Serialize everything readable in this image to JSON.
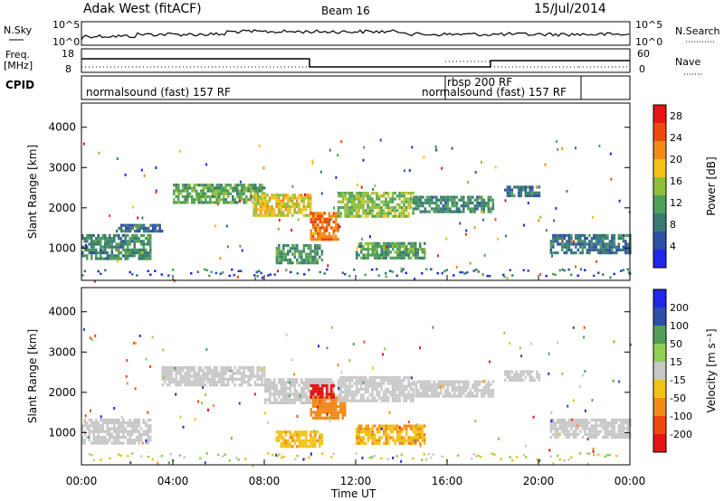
{
  "header": {
    "station": "Adak West (fitACF)",
    "beam": "Beam 16",
    "date": "15/Jul/2014"
  },
  "top_panels": {
    "nsky_label": "N.Sky",
    "nsearch_label": "N.Search",
    "nsky_ticks": [
      "10^5",
      "10^0"
    ],
    "freq_label_1": "Freq.",
    "freq_label_2": "[MHz]",
    "freq_ticks": [
      "18",
      "8"
    ],
    "nave_label": "Nave",
    "nave_ticks": [
      "60",
      "0"
    ],
    "cpid_label": "CPID",
    "cpid_segments": [
      "normalsound (fast) 157 RF",
      "rbsp 200 RF",
      "normalsound (fast) 157 RF"
    ]
  },
  "colors": {
    "power_scale": [
      "#1e28e6",
      "#2e4fa8",
      "#3a7a74",
      "#4f9f5a",
      "#8fbf3a",
      "#f2c21a",
      "#f28a1a",
      "#ee4a10",
      "#e61414"
    ],
    "velocity_scale": [
      "#e61414",
      "#ee4a10",
      "#f28a1a",
      "#f2c21a",
      "#c8c8c8",
      "#8fd050",
      "#4f9f5a",
      "#2e4fa8",
      "#1e28e6"
    ]
  },
  "chart_data": [
    {
      "type": "heatmap",
      "quantity": "power",
      "xlabel": "Time UT",
      "ylabel": "Slant Range [km]",
      "x_ticks": [
        "00:00",
        "04:00",
        "08:00",
        "12:00",
        "16:00",
        "20:00",
        "00:00"
      ],
      "y_ticks": [
        "1000",
        "2000",
        "3000",
        "4000"
      ],
      "ylim": [
        200,
        4600
      ],
      "xlim_hours": [
        0,
        24
      ],
      "colorbar_label": "Power [dB]",
      "colorbar_ticks": [
        "4",
        "8",
        "12",
        "16",
        "20",
        "24",
        "28"
      ],
      "colorbar_range": [
        0,
        30
      ],
      "bands": [
        {
          "t0": 0.0,
          "t1": 3.0,
          "r0": 750,
          "r1": 1350,
          "level": 9
        },
        {
          "t0": 1.5,
          "t1": 3.5,
          "r0": 1450,
          "r1": 1600,
          "level": 7
        },
        {
          "t0": 4.0,
          "t1": 8.0,
          "r0": 2150,
          "r1": 2600,
          "level": 12
        },
        {
          "t0": 7.5,
          "t1": 10.0,
          "r0": 1800,
          "r1": 2350,
          "level": 18
        },
        {
          "t0": 10.0,
          "t1": 11.2,
          "r0": 1250,
          "r1": 1900,
          "level": 24
        },
        {
          "t0": 11.2,
          "t1": 14.5,
          "r0": 1800,
          "r1": 2400,
          "level": 14
        },
        {
          "t0": 8.5,
          "t1": 10.5,
          "r0": 650,
          "r1": 1100,
          "level": 10
        },
        {
          "t0": 12.0,
          "t1": 15.0,
          "r0": 750,
          "r1": 1150,
          "level": 11
        },
        {
          "t0": 14.5,
          "t1": 18.0,
          "r0": 1900,
          "r1": 2300,
          "level": 9
        },
        {
          "t0": 18.5,
          "t1": 20.0,
          "r0": 2300,
          "r1": 2550,
          "level": 6
        },
        {
          "t0": 20.5,
          "t1": 24.0,
          "r0": 900,
          "r1": 1350,
          "level": 7
        }
      ]
    },
    {
      "type": "heatmap",
      "quantity": "velocity",
      "xlabel": "Time UT",
      "ylabel": "Slant Range [km]",
      "x_ticks": [
        "00:00",
        "04:00",
        "08:00",
        "12:00",
        "16:00",
        "20:00",
        "00:00"
      ],
      "y_ticks": [
        "1000",
        "2000",
        "3000",
        "4000"
      ],
      "ylim": [
        200,
        4600
      ],
      "xlim_hours": [
        0,
        24
      ],
      "colorbar_label": "Velocity [m s⁻¹]",
      "colorbar_ticks": [
        "200",
        "100",
        "50",
        "15",
        "-15",
        "-50",
        "-100",
        "-200"
      ],
      "colorbar_range": [
        -250,
        250
      ],
      "bands": [
        {
          "t0": 0.0,
          "t1": 3.0,
          "r0": 750,
          "r1": 1350,
          "vel": 0
        },
        {
          "t0": 3.5,
          "t1": 8.0,
          "r0": 2150,
          "r1": 2650,
          "vel": 0
        },
        {
          "t0": 8.0,
          "t1": 11.0,
          "r0": 1750,
          "r1": 2350,
          "vel": 0
        },
        {
          "t0": 10.0,
          "t1": 11.5,
          "r0": 1350,
          "r1": 1900,
          "vel": -80
        },
        {
          "t0": 10.0,
          "t1": 11.0,
          "r0": 1900,
          "r1": 2200,
          "vel": -220
        },
        {
          "t0": 11.2,
          "t1": 14.5,
          "r0": 1800,
          "r1": 2400,
          "vel": 0
        },
        {
          "t0": 8.5,
          "t1": 10.5,
          "r0": 650,
          "r1": 1050,
          "vel": -40
        },
        {
          "t0": 12.0,
          "t1": 15.0,
          "r0": 750,
          "r1": 1200,
          "vel": -45
        },
        {
          "t0": 14.5,
          "t1": 18.0,
          "r0": 1900,
          "r1": 2300,
          "vel": 0
        },
        {
          "t0": 18.5,
          "t1": 20.0,
          "r0": 2300,
          "r1": 2550,
          "vel": 0
        },
        {
          "t0": 20.5,
          "t1": 24.0,
          "r0": 900,
          "r1": 1350,
          "vel": 0
        }
      ]
    }
  ]
}
